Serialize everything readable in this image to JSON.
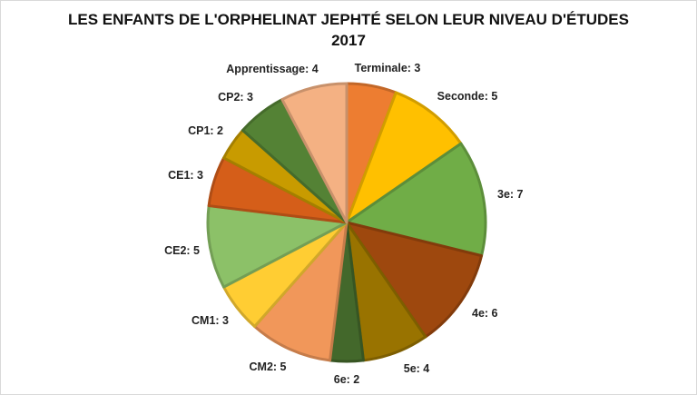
{
  "chart_data": {
    "type": "pie",
    "title_line1": "LES ENFANTS DE L'ORPHELINAT JEPHTÉ SELON LEUR NIVEAU D'ÉTUDES",
    "title_line2": "2017",
    "start_angle_deg": 0,
    "direction": "clockwise",
    "slices": [
      {
        "label": "Terminale",
        "value": 3,
        "color": "#ED7D31"
      },
      {
        "label": "Seconde",
        "value": 5,
        "color": "#FFC000"
      },
      {
        "label": "3e",
        "value": 7,
        "color": "#70AD47"
      },
      {
        "label": "4e",
        "value": 6,
        "color": "#9E480E"
      },
      {
        "label": "5e",
        "value": 4,
        "color": "#997300"
      },
      {
        "label": "6e",
        "value": 2,
        "color": "#43682B"
      },
      {
        "label": "CM2",
        "value": 5,
        "color": "#F1975A"
      },
      {
        "label": "CM1",
        "value": 3,
        "color": "#FFCD33"
      },
      {
        "label": "CE2",
        "value": 5,
        "color": "#8CC168"
      },
      {
        "label": "CE1",
        "value": 3,
        "color": "#D55E19"
      },
      {
        "label": "CP1",
        "value": 2,
        "color": "#C89B00"
      },
      {
        "label": "CP2",
        "value": 3,
        "color": "#548235"
      },
      {
        "label": "Apprentissage",
        "value": 4,
        "color": "#F4B183"
      }
    ],
    "data_labels": [
      "Terminale: 3",
      "Seconde: 5",
      "3e: 7",
      "4e: 6",
      "5e: 4",
      "6e: 2",
      "CM2: 5",
      "CM1: 3",
      "CE2: 5",
      "CE1: 3",
      "CP1: 2",
      "CP2: 3",
      "Apprentissage: 4"
    ]
  }
}
